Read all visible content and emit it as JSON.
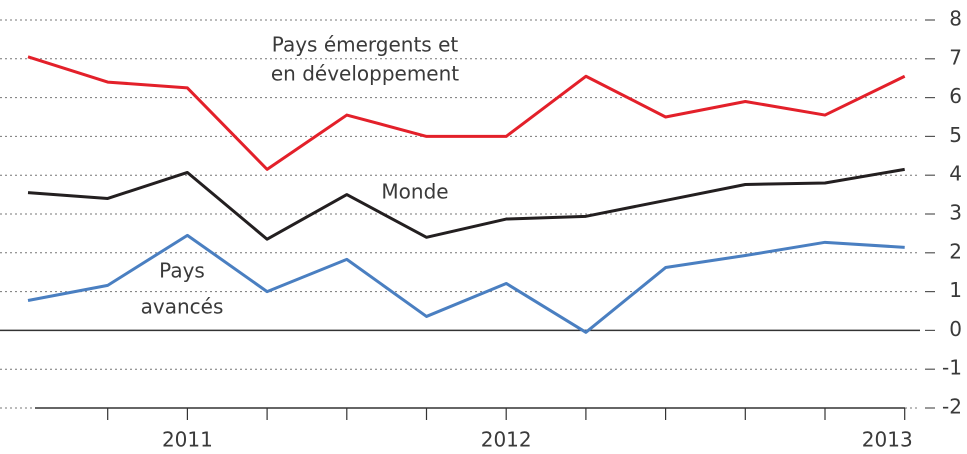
{
  "chart_data": {
    "type": "line",
    "categories": [
      null,
      null,
      "2011",
      null,
      null,
      null,
      "2012",
      null,
      null,
      null,
      null,
      "2013"
    ],
    "series": [
      {
        "name": [
          "Pays émergents et",
          "en développement"
        ],
        "color": "#e3202a",
        "values": [
          7.05,
          6.4,
          6.25,
          4.15,
          5.55,
          5.0,
          5.0,
          6.55,
          5.5,
          5.9,
          5.55,
          6.55
        ]
      },
      {
        "name": [
          "Monde"
        ],
        "color": "#231f20",
        "values": [
          3.55,
          3.4,
          4.07,
          2.35,
          3.5,
          2.4,
          2.87,
          2.94,
          3.35,
          3.76,
          3.8,
          4.15
        ]
      },
      {
        "name": [
          "Pays",
          "avancés"
        ],
        "color": "#4a7fc1",
        "values": [
          0.77,
          1.16,
          2.45,
          1.0,
          1.83,
          0.36,
          1.21,
          -0.05,
          1.62,
          1.93,
          2.27,
          2.14
        ]
      }
    ],
    "ylim": [
      -2,
      8
    ],
    "yticks": [
      -2,
      -1,
      0,
      1,
      2,
      3,
      4,
      5,
      6,
      7,
      8
    ],
    "grid": true
  }
}
